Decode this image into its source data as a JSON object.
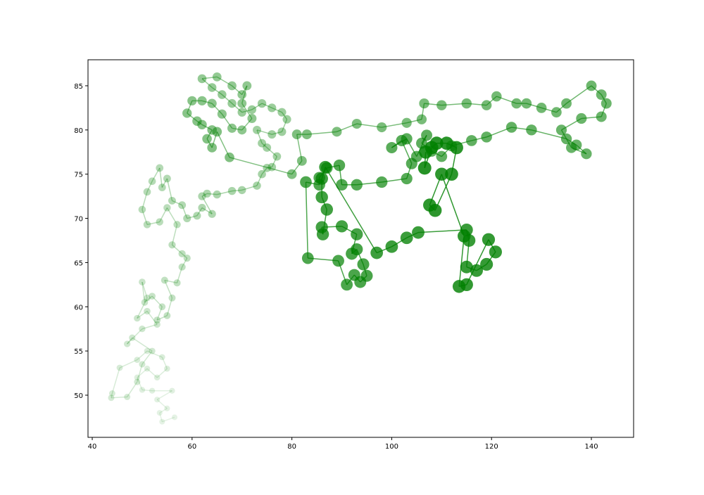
{
  "chart_data": {
    "type": "scatter",
    "color": "#008000",
    "x": [
      56.5,
      54,
      53.5,
      55,
      53,
      56,
      52,
      50,
      49,
      51,
      53,
      55,
      54,
      51,
      49,
      45.5,
      44,
      43.8,
      47,
      49,
      50,
      52,
      48,
      47,
      50,
      53,
      51,
      49,
      51,
      50,
      50.5,
      52,
      54,
      53,
      55,
      56,
      54.5,
      57,
      58,
      59,
      58,
      56,
      57,
      55,
      53.5,
      51,
      50,
      51,
      52,
      53.5,
      54,
      55,
      56,
      58,
      59,
      61,
      62,
      64,
      62,
      63,
      65,
      68,
      70,
      73,
      74,
      75,
      76,
      77,
      75,
      74,
      73,
      76,
      78,
      79,
      78,
      76,
      74,
      72,
      70,
      68,
      66,
      64,
      62,
      65,
      68,
      70,
      71,
      70,
      72,
      70,
      68,
      66,
      64,
      62,
      60,
      59,
      61,
      62,
      64,
      63,
      64,
      65,
      67.5,
      80,
      82,
      81,
      83,
      89,
      93,
      98,
      103,
      106,
      106.5,
      110,
      115,
      119,
      121,
      125,
      127,
      130,
      133,
      135,
      140,
      142,
      143,
      142,
      138,
      134,
      136,
      139,
      137,
      135,
      128,
      124,
      119,
      116,
      112,
      110,
      108,
      106,
      107,
      105,
      103,
      100,
      102,
      104,
      103,
      98,
      93,
      90,
      89.5,
      87,
      85.5,
      85.5,
      82.8,
      83.2,
      89.3,
      91,
      92.5,
      93.7,
      95,
      94.3,
      93,
      92,
      93,
      90,
      86,
      86.2,
      87,
      86,
      86,
      86.7,
      97,
      100,
      103,
      105.3,
      115,
      115.5,
      115,
      117,
      119,
      120.8,
      119.4,
      115,
      113.5,
      114.5,
      110,
      107.6,
      108.7,
      112,
      113,
      111,
      109,
      108,
      106.6,
      106.8
    ],
    "values": [
      47.5,
      47,
      48,
      48.5,
      49.5,
      50.5,
      50.5,
      50.6,
      52,
      53,
      52,
      53,
      54.3,
      55,
      54,
      53.1,
      50.2,
      49.7,
      49.8,
      51.5,
      53.5,
      55,
      56.5,
      55.8,
      57.5,
      58,
      59.5,
      58.7,
      61,
      62.8,
      60.5,
      61.2,
      60,
      58.5,
      59,
      61,
      63,
      62.7,
      64.5,
      65.5,
      66,
      67,
      69.3,
      71.2,
      69.6,
      69.3,
      71,
      73,
      74.2,
      75.7,
      73.5,
      74.5,
      72,
      71.5,
      70,
      70.3,
      71.2,
      70.5,
      72.5,
      72.8,
      72.7,
      73.1,
      73.2,
      73.7,
      75,
      75.7,
      75.8,
      77,
      78,
      78.5,
      80,
      79.5,
      79.8,
      81.2,
      82,
      82.5,
      83,
      82.3,
      82,
      83,
      84,
      84.8,
      85.8,
      86,
      85,
      84,
      85,
      83,
      81.3,
      80,
      80.2,
      81.8,
      83,
      83.3,
      83.3,
      81.9,
      81,
      80.6,
      80,
      79,
      78,
      79.8,
      76.9,
      75,
      76.5,
      79.5,
      79.5,
      79.8,
      80.7,
      80.3,
      80.8,
      81.2,
      83,
      82.8,
      83,
      82.8,
      83.8,
      83,
      83,
      82.5,
      82,
      83,
      85,
      84,
      83,
      81.5,
      81.3,
      80,
      78,
      77.3,
      78.3,
      79,
      80,
      80.3,
      79.2,
      78.8,
      78.2,
      77,
      77.6,
      78.5,
      79.4,
      77,
      79,
      78,
      78.8,
      76.2,
      74.5,
      74.1,
      73.8,
      73.8,
      76,
      75.7,
      74.6,
      73.8,
      74.1,
      65.5,
      65.2,
      62.5,
      63.6,
      62.8,
      63.5,
      64.8,
      66.5,
      66,
      68.2,
      69.1,
      69,
      68.2,
      71,
      72.4,
      74.5,
      75.8,
      66.1,
      66.8,
      67.8,
      68.4,
      68.7,
      67.5,
      64.5,
      64.1,
      64.8,
      66.2,
      67.6,
      62.5,
      62.3,
      68,
      75,
      71.5,
      70.9,
      75,
      78,
      78.5,
      78.5,
      78,
      75.7,
      77.5
    ],
    "xlim": [
      39.15,
      148.46
    ],
    "ylim": [
      45.23,
      87.94
    ],
    "xticks": [
      40,
      60,
      80,
      100,
      120,
      140
    ],
    "yticks": [
      50,
      55,
      60,
      65,
      70,
      75,
      80,
      85
    ]
  }
}
